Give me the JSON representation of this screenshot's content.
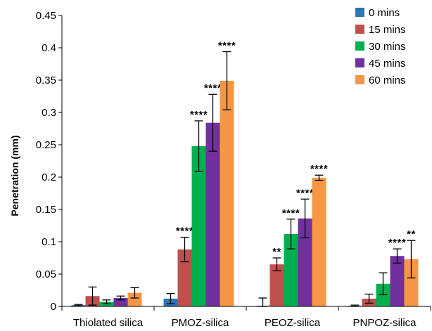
{
  "chart_data": {
    "type": "bar",
    "ylabel": "Penetration (mm)",
    "ylim": [
      0,
      0.45
    ],
    "yticks": [
      "0",
      "0.05",
      "0.1",
      "0.15",
      "0.2",
      "0.25",
      "0.3",
      "0.35",
      "0.4",
      "0.45"
    ],
    "categories": [
      "Thiolated silica",
      "PMOZ-silica",
      "PEOZ-silica",
      "PNPOZ-silica"
    ],
    "legend_position": "top-right",
    "grid": false,
    "series": [
      {
        "name": "0 mins",
        "color": "#2E75B6",
        "values": [
          0.002,
          0.012,
          0.001,
          0.001
        ],
        "errors": [
          0.001,
          0.008,
          0.012,
          0.001
        ],
        "sig": [
          "",
          "",
          "",
          ""
        ]
      },
      {
        "name": "15 mins",
        "color": "#C0504D",
        "values": [
          0.016,
          0.088,
          0.065,
          0.012
        ],
        "errors": [
          0.014,
          0.019,
          0.01,
          0.007
        ],
        "sig": [
          "",
          "****",
          "**",
          ""
        ]
      },
      {
        "name": "30 mins",
        "color": "#00B050",
        "values": [
          0.007,
          0.248,
          0.112,
          0.035
        ],
        "errors": [
          0.003,
          0.039,
          0.023,
          0.017
        ],
        "sig": [
          "",
          "****",
          "****",
          ""
        ]
      },
      {
        "name": "45 mins",
        "color": "#7030A0",
        "values": [
          0.013,
          0.284,
          0.136,
          0.078
        ],
        "errors": [
          0.003,
          0.044,
          0.03,
          0.011
        ],
        "sig": [
          "",
          "****",
          "****",
          "****"
        ]
      },
      {
        "name": "60 mins",
        "color": "#F79646",
        "values": [
          0.021,
          0.349,
          0.199,
          0.073
        ],
        "errors": [
          0.008,
          0.045,
          0.004,
          0.029
        ],
        "sig": [
          "",
          "****",
          "****",
          "**"
        ]
      }
    ]
  }
}
